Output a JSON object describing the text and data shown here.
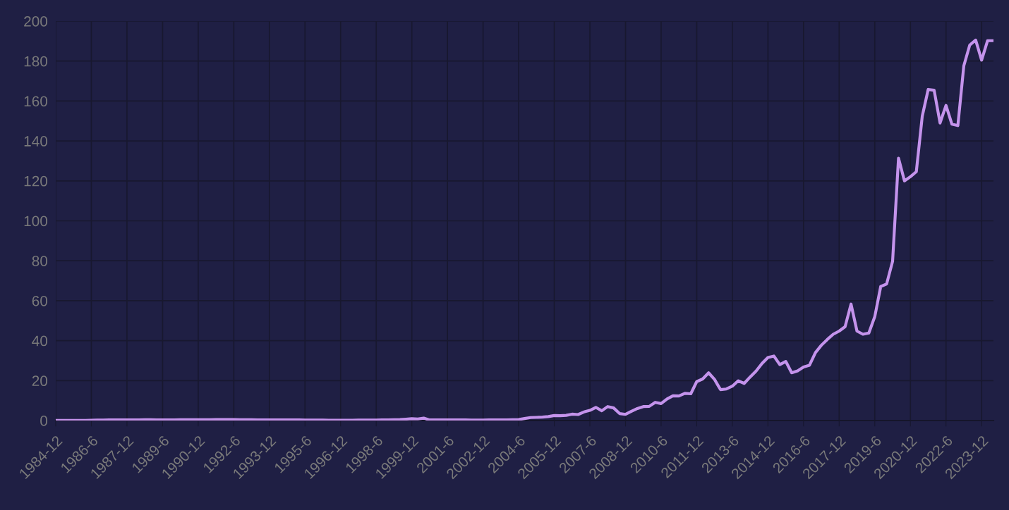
{
  "chart_data": {
    "type": "line",
    "categories": [
      "1984-12",
      null,
      null,
      null,
      null,
      null,
      "1986-6",
      null,
      null,
      null,
      null,
      null,
      "1987-12",
      null,
      null,
      null,
      null,
      null,
      "1989-6",
      null,
      null,
      null,
      null,
      null,
      "1990-12",
      null,
      null,
      null,
      null,
      null,
      "1992-6",
      null,
      null,
      null,
      null,
      null,
      "1993-12",
      null,
      null,
      null,
      null,
      null,
      "1995-6",
      null,
      null,
      null,
      null,
      null,
      "1996-12",
      null,
      null,
      null,
      null,
      null,
      "1998-6",
      null,
      null,
      null,
      null,
      null,
      "1999-12",
      null,
      null,
      null,
      null,
      null,
      "2001-6",
      null,
      null,
      null,
      null,
      null,
      "2002-12",
      null,
      null,
      null,
      null,
      null,
      "2004-6",
      null,
      null,
      null,
      null,
      null,
      "2005-12",
      null,
      null,
      null,
      null,
      null,
      "2007-6",
      null,
      null,
      null,
      null,
      null,
      "2008-12",
      null,
      null,
      null,
      null,
      null,
      "2010-6",
      null,
      null,
      null,
      null,
      null,
      "2011-12",
      null,
      null,
      null,
      null,
      null,
      "2013-6",
      null,
      null,
      null,
      null,
      null,
      "2014-12",
      null,
      null,
      null,
      null,
      null,
      "2016-6",
      null,
      null,
      null,
      null,
      null,
      "2017-12",
      null,
      null,
      null,
      null,
      null,
      "2019-6",
      null,
      null,
      null,
      null,
      null,
      "2020-12",
      null,
      null,
      null,
      null,
      null,
      "2022-6",
      null,
      null,
      null,
      null,
      null,
      "2023-12",
      null,
      null
    ],
    "series": [
      {
        "color": "#c493ec",
        "values": [
          0.1,
          0.1,
          0.1,
          0.1,
          0.1,
          0.1,
          0.15,
          0.2,
          0.25,
          0.3,
          0.35,
          0.3,
          0.3,
          0.3,
          0.35,
          0.4,
          0.4,
          0.35,
          0.35,
          0.3,
          0.35,
          0.4,
          0.4,
          0.45,
          0.4,
          0.45,
          0.45,
          0.5,
          0.5,
          0.5,
          0.5,
          0.45,
          0.45,
          0.4,
          0.35,
          0.3,
          0.3,
          0.3,
          0.35,
          0.3,
          0.3,
          0.3,
          0.25,
          0.25,
          0.2,
          0.2,
          0.15,
          0.15,
          0.15,
          0.15,
          0.15,
          0.2,
          0.2,
          0.2,
          0.25,
          0.3,
          0.3,
          0.4,
          0.5,
          0.7,
          0.9,
          0.8,
          1.2,
          0.3,
          0.3,
          0.3,
          0.3,
          0.3,
          0.3,
          0.3,
          0.25,
          0.25,
          0.25,
          0.3,
          0.3,
          0.3,
          0.35,
          0.4,
          0.5,
          1.0,
          1.5,
          1.6,
          1.7,
          2.0,
          2.5,
          2.4,
          2.6,
          3.2,
          3.0,
          4.3,
          5.1,
          6.6,
          4.9,
          7.0,
          6.3,
          3.5,
          3.1,
          4.6,
          6.0,
          7.0,
          7.1,
          9.1,
          8.5,
          10.8,
          12.4,
          12.3,
          13.6,
          13.4,
          19.5,
          20.8,
          23.9,
          20.6,
          15.5,
          15.8,
          17.2,
          19.9,
          18.6,
          21.8,
          24.8,
          28.6,
          31.6,
          32.3,
          28.0,
          29.6,
          23.9,
          24.9,
          26.8,
          27.7,
          34.0,
          37.7,
          40.6,
          43.2,
          44.8,
          47.0,
          58.3,
          44.8,
          43.2,
          43.8,
          52.0,
          67.1,
          68.4,
          79.7,
          131.4,
          120.0,
          122.1,
          124.6,
          152.4,
          165.8,
          165.4,
          149.0,
          157.8,
          148.4,
          147.7,
          177.6,
          188.0,
          190.5,
          180.5,
          190.2,
          190.2
        ]
      }
    ],
    "ylim": [
      0,
      200
    ],
    "yticks": [
      0,
      20,
      40,
      60,
      80,
      100,
      120,
      140,
      160,
      180,
      200
    ],
    "grid": true,
    "marker": "none",
    "line_style": "solid"
  }
}
